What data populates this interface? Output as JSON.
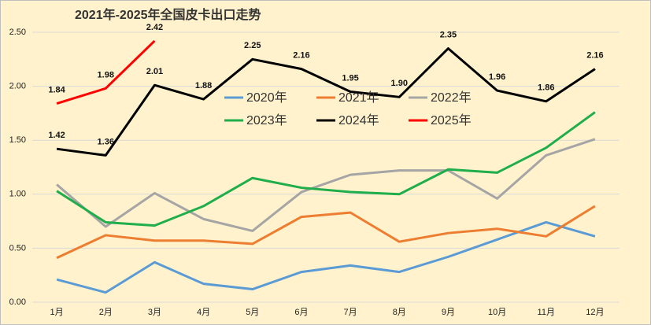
{
  "chart_data": {
    "type": "line",
    "title": "2021年-2025年全国皮卡出口走势",
    "categories": [
      "1月",
      "2月",
      "3月",
      "4月",
      "5月",
      "6月",
      "7月",
      "8月",
      "9月",
      "10月",
      "11月",
      "12月"
    ],
    "ylim": [
      0,
      2.5
    ],
    "yticks": [
      {
        "value": 0,
        "label": "0.00"
      },
      {
        "value": 0.5,
        "label": "0.50"
      },
      {
        "value": 1,
        "label": "1.00"
      },
      {
        "value": 1.5,
        "label": "1.50"
      },
      {
        "value": 2,
        "label": "2.00"
      },
      {
        "value": 2.5,
        "label": "2.50"
      }
    ],
    "grid": true,
    "series": [
      {
        "name": "2020年",
        "color": "#5b9bd5",
        "values": [
          0.21,
          0.09,
          0.37,
          0.17,
          0.12,
          0.28,
          0.34,
          0.28,
          0.42,
          0.58,
          0.74,
          0.61
        ]
      },
      {
        "name": "2021年",
        "color": "#ed7d31",
        "values": [
          0.41,
          0.62,
          0.57,
          0.57,
          0.54,
          0.79,
          0.83,
          0.56,
          0.64,
          0.68,
          0.61,
          0.89
        ]
      },
      {
        "name": "2022年",
        "color": "#a5a5a5",
        "values": [
          1.09,
          0.7,
          1.01,
          0.77,
          0.66,
          1.02,
          1.18,
          1.22,
          1.22,
          0.96,
          1.36,
          1.51
        ]
      },
      {
        "name": "2023年",
        "color": "#1fae4b",
        "values": [
          1.03,
          0.74,
          0.71,
          0.89,
          1.15,
          1.06,
          1.02,
          1.0,
          1.23,
          1.2,
          1.43,
          1.76
        ]
      },
      {
        "name": "2024年",
        "color": "#000000",
        "values": [
          1.42,
          1.36,
          2.01,
          1.88,
          2.25,
          2.16,
          1.95,
          1.9,
          2.35,
          1.96,
          1.86,
          2.16
        ],
        "value_labels": [
          "1.42",
          "1.36",
          "2.01",
          "1.88",
          "2.25",
          "2.16",
          "1.95",
          "1.90",
          "2.35",
          "1.96",
          "1.86",
          "2.16"
        ]
      },
      {
        "name": "2025年",
        "color": "#ff0000",
        "values": [
          1.84,
          1.98,
          2.42,
          null,
          null,
          null,
          null,
          null,
          null,
          null,
          null,
          null
        ],
        "value_labels": [
          "1.84",
          "1.98",
          "2.42",
          null,
          null,
          null,
          null,
          null,
          null,
          null,
          null,
          null
        ]
      }
    ]
  }
}
